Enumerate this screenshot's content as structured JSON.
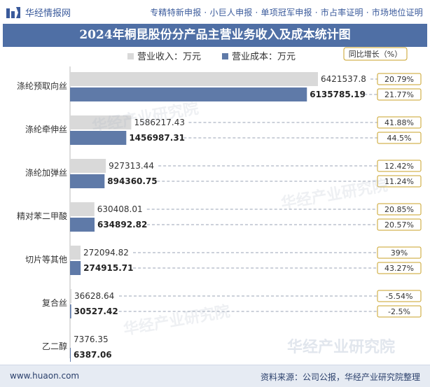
{
  "header": {
    "brand": "华经情报网",
    "tagline": "专精特新申报 · 小巨人申报 · 单项冠军申报 · 市占率证明 · 市场地位证明"
  },
  "chart_data": {
    "type": "bar",
    "orientation": "horizontal",
    "title": "2024年桐昆股份分产品主营业务收入及成本统计图",
    "categories": [
      "涤纶预取向丝",
      "涤纶牵伸丝",
      "涤纶加弹丝",
      "精对苯二甲酸",
      "切片等其他",
      "复合丝",
      "乙二醇"
    ],
    "series": [
      {
        "name": "营业收入：万元",
        "color": "#d9d9d9",
        "values": [
          6421537.8,
          1586217.43,
          927313.44,
          630408.01,
          272094.82,
          36628.64,
          7376.35
        ],
        "labels": [
          "6421537.8",
          "1586217.43",
          "927313.44",
          "630408.01",
          "272094.82",
          "36628.64",
          "7376.35"
        ],
        "growth": [
          "20.79%",
          "41.88%",
          "12.42%",
          "20.85%",
          "39%",
          "-5.54%",
          null
        ]
      },
      {
        "name": "营业成本：万元",
        "color": "#5f7aa8",
        "values": [
          6135785.19,
          1456987.31,
          894360.75,
          634892.82,
          274915.71,
          30527.42,
          6387.06
        ],
        "labels": [
          "6135785.19",
          "1456987.31",
          "894360.75",
          "634892.82",
          "274915.71",
          "30527.42",
          "6387.06"
        ],
        "growth": [
          "21.77%",
          "44.5%",
          "11.24%",
          "20.57%",
          "43.27%",
          "-2.5%",
          null
        ]
      }
    ],
    "growth_header": "同比增长（%）",
    "legend_position": "top",
    "grid": false
  },
  "footer": {
    "website": "www.huaon.com",
    "source": "资料来源：公司公报，华经产业研究院整理"
  },
  "watermarks": [
    "华经产业研究院",
    "www.huaon.com"
  ]
}
